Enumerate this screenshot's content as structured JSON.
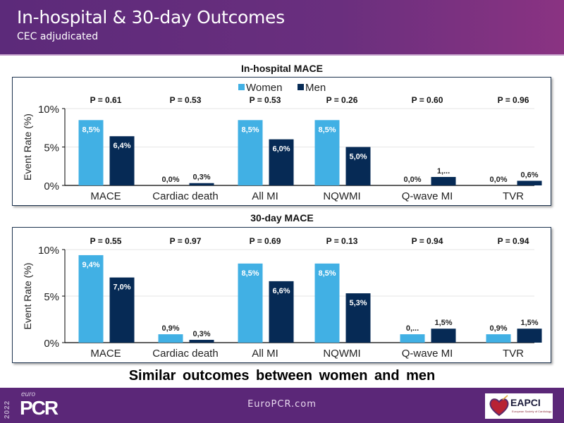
{
  "header": {
    "title": "In-hospital & 30-day Outcomes",
    "subtitle": "CEC adjudicated"
  },
  "conclusion": "Similar outcomes between women and men",
  "footer": {
    "url": "EuroPCR.com",
    "logo_year": "2022",
    "logo_euro": "euro",
    "logo_pcr": "PCR",
    "partner_name": "EAPCI",
    "partner_sub": "European Society of Cardiology"
  },
  "colors": {
    "women": "#41b0e4",
    "men": "#062a55",
    "header": "#5c2a7a",
    "footer": "#5b2778"
  },
  "chart_data": [
    {
      "type": "bar",
      "title": "In-hospital MACE",
      "xlabel": "",
      "ylabel": "Event Rate (%)",
      "ylim": [
        0,
        10
      ],
      "yticks": [
        "0%",
        "5%",
        "10%"
      ],
      "ytick_values": [
        0,
        5,
        10
      ],
      "grid": true,
      "legend": "top-center",
      "categories": [
        "MACE",
        "Cardiac death",
        "All MI",
        "NQWMI",
        "Q-wave MI",
        "TVR"
      ],
      "p_values": [
        "P = 0.61",
        "P = 0.53",
        "P = 0.53",
        "P = 0.26",
        "P = 0.60",
        "P = 0.96"
      ],
      "series": [
        {
          "name": "Women",
          "values": [
            8.5,
            0.0,
            8.5,
            8.5,
            0.0,
            0.0
          ],
          "labels": [
            "8,5%",
            "0,0%",
            "8,5%",
            "8,5%",
            "0,0%",
            "0,0%"
          ]
        },
        {
          "name": "Men",
          "values": [
            6.4,
            0.3,
            6.0,
            5.0,
            1.1,
            0.6
          ],
          "labels": [
            "6,4%",
            "0,3%",
            "6,0%",
            "5,0%",
            "1,...",
            "0,6%"
          ]
        }
      ]
    },
    {
      "type": "bar",
      "title": "30-day MACE",
      "xlabel": "",
      "ylabel": "Event Rate (%)",
      "ylim": [
        0,
        10
      ],
      "yticks": [
        "0%",
        "5%",
        "10%"
      ],
      "ytick_values": [
        0,
        5,
        10
      ],
      "grid": true,
      "legend": "none",
      "categories": [
        "MACE",
        "Cardiac death",
        "All MI",
        "NQWMI",
        "Q-wave MI",
        "TVR"
      ],
      "p_values": [
        "P = 0.55",
        "P = 0.97",
        "P = 0.69",
        "P = 0.13",
        "P = 0.94",
        "P = 0.94"
      ],
      "series": [
        {
          "name": "Women",
          "values": [
            9.4,
            0.9,
            8.5,
            8.5,
            0.9,
            0.9
          ],
          "labels": [
            "9,4%",
            "0,9%",
            "8,5%",
            "8,5%",
            "0,...",
            "0,9%"
          ]
        },
        {
          "name": "Men",
          "values": [
            7.0,
            0.3,
            6.6,
            5.3,
            1.5,
            1.5
          ],
          "labels": [
            "7,0%",
            "0,3%",
            "6,6%",
            "5,3%",
            "1,5%",
            "1,5%"
          ]
        }
      ]
    }
  ]
}
